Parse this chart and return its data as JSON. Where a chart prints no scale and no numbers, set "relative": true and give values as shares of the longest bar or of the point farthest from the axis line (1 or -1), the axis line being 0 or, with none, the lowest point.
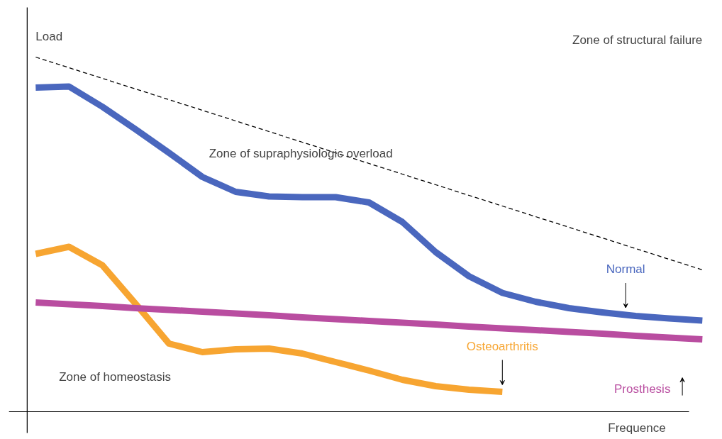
{
  "chart_data": {
    "type": "line",
    "relative": true,
    "xlabel": "Frequence",
    "ylabel": "Load",
    "categories": [
      null,
      null,
      null,
      null,
      null,
      null,
      null,
      null,
      null,
      null,
      null,
      null,
      null,
      null,
      null,
      null,
      null,
      null,
      null,
      null,
      null
    ],
    "series": [
      {
        "color": "#000000",
        "line_style": "dashed",
        "values": [
          1.0,
          0.97,
          0.94,
          0.91,
          0.88,
          0.85,
          0.82,
          0.79,
          0.76,
          0.73,
          0.7,
          0.67,
          0.64,
          0.61,
          0.58,
          0.55,
          0.52,
          0.49,
          0.46,
          0.43,
          0.4
        ]
      },
      {
        "name": "Normal",
        "color": "#4a67be",
        "values": [
          0.914,
          0.917,
          0.86,
          0.796,
          0.73,
          0.662,
          0.62,
          0.607,
          0.605,
          0.605,
          0.59,
          0.535,
          0.45,
          0.382,
          0.335,
          0.31,
          0.292,
          0.28,
          0.27,
          0.263,
          0.257
        ]
      },
      {
        "name": "Osteoarthritis",
        "color": "#f7a531",
        "values": [
          0.445,
          0.465,
          0.413,
          0.304,
          0.192,
          0.168,
          0.176,
          0.178,
          0.164,
          0.14,
          0.116,
          0.09,
          0.072,
          0.062,
          0.056,
          null,
          null,
          null,
          null,
          null,
          null
        ]
      },
      {
        "name": "Prosthesis",
        "color": "#b94da0",
        "values": [
          0.308,
          0.303,
          0.298,
          0.292,
          0.287,
          0.282,
          0.277,
          0.272,
          0.266,
          0.261,
          0.256,
          0.251,
          0.246,
          0.24,
          0.235,
          0.23,
          0.225,
          0.22,
          0.214,
          0.209,
          0.204
        ]
      }
    ],
    "annotations": [
      "Zone of structural failure",
      "Zone of supraphysiologic overload",
      "Zone of homeostasis"
    ]
  }
}
